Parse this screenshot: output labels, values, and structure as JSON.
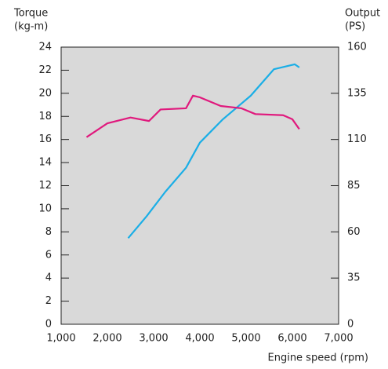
{
  "chart_data": {
    "type": "line",
    "y_label": [
      "Torque",
      "(kg-m)"
    ],
    "y2_label": [
      "Output",
      "(PS)"
    ],
    "x_label": "Engine speed (rpm)",
    "xlim": [
      1000,
      7000
    ],
    "xticks": [
      {
        "value": 1000,
        "label": "1,000"
      },
      {
        "value": 2000,
        "label": "2,000"
      },
      {
        "value": 3000,
        "label": "3,000"
      },
      {
        "value": 4000,
        "label": "4,000"
      },
      {
        "value": 5000,
        "label": "5,000"
      },
      {
        "value": 6000,
        "label": "6,000"
      },
      {
        "value": 7000,
        "label": "7,000"
      }
    ],
    "ylim": [
      0,
      24
    ],
    "yticks": [
      0,
      2,
      4,
      6,
      8,
      10,
      12,
      14,
      16,
      18,
      20,
      22,
      24
    ],
    "y2lim": [
      10,
      160
    ],
    "y2ticks": [
      35,
      60,
      85,
      110,
      135,
      160
    ],
    "y2_bottom_label": "0",
    "series": [
      {
        "axis": "y2",
        "color": "#1aaee6",
        "x": [
          2450,
          2850,
          3250,
          3700,
          4000,
          4500,
          5100,
          5600,
          6050,
          6150
        ],
        "values": [
          56.6,
          68.5,
          81.6,
          94.7,
          108.3,
          121,
          133.7,
          148,
          150.7,
          149
        ]
      },
      {
        "axis": "y",
        "color": "#e0197d",
        "x": [
          1550,
          2000,
          2500,
          2900,
          3150,
          3700,
          3850,
          4000,
          4450,
          4900,
          5200,
          5800,
          6000,
          6150
        ],
        "values": [
          16.2,
          17.4,
          17.9,
          17.6,
          18.6,
          18.7,
          19.8,
          19.65,
          18.9,
          18.7,
          18.2,
          18.1,
          17.75,
          16.9
        ]
      }
    ]
  }
}
